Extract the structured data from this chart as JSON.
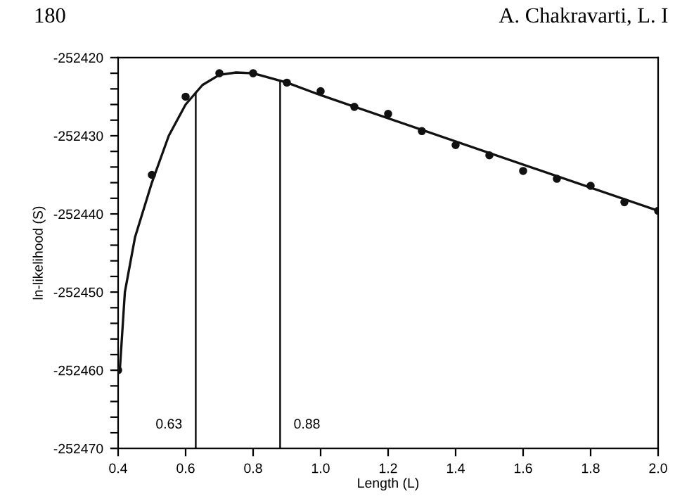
{
  "chart_data": {
    "type": "scatter",
    "xlabel": "Length (L)",
    "ylabel": "ln-likelihood (S)",
    "annotations": [
      "180",
      "A. Chakravarti, L. I"
    ],
    "series": [
      {
        "color": "#111111",
        "marker": "circle",
        "x": [
          0.4,
          0.5,
          0.6,
          0.7,
          0.8,
          0.9,
          1.0,
          1.1,
          1.2,
          1.3,
          1.4,
          1.5,
          1.6,
          1.7,
          1.8,
          1.9,
          2.0
        ],
        "values": [
          -252460,
          -252435,
          -252425,
          -252422,
          -252422,
          -252423.2,
          -252424.3,
          -252426.3,
          -252427.2,
          -252429.4,
          -252431.2,
          -252432.5,
          -252434.5,
          -252435.5,
          -252436.4,
          -252438.5,
          -252439.6
        ]
      },
      {
        "type": "line",
        "color": "#111111",
        "marker": "none",
        "line_style": "solid",
        "x": [
          0.405,
          0.42,
          0.45,
          0.5,
          0.55,
          0.6,
          0.65,
          0.7,
          0.75,
          0.8,
          0.9,
          1.0,
          2.0
        ],
        "values": [
          -252460,
          -252450,
          -252443,
          -252436,
          -252430,
          -252426,
          -252423.5,
          -252422.2,
          -252421.9,
          -252422,
          -252423.2,
          -252424.8,
          -252439.6
        ]
      }
    ],
    "ref_lines": [
      {
        "axis": "x",
        "value": 0.63,
        "label": "0.63",
        "color": "#111111"
      },
      {
        "axis": "x",
        "value": 0.88,
        "label": "0.88",
        "color": "#111111"
      }
    ],
    "xlim": [
      0.4,
      2.0
    ],
    "xticks": [
      {
        "value": 0.4,
        "label": "0.4"
      },
      {
        "value": 0.6,
        "label": "0.6"
      },
      {
        "value": 0.8,
        "label": "0.8"
      },
      {
        "value": 1.0,
        "label": "1.0"
      },
      {
        "value": 1.2,
        "label": "1.2"
      },
      {
        "value": 1.4,
        "label": "1.4"
      },
      {
        "value": 1.6,
        "label": "1.6"
      },
      {
        "value": 1.8,
        "label": "1.8"
      },
      {
        "value": 2.0,
        "label": "2.0"
      }
    ],
    "ylim": [
      -252470,
      -252420
    ],
    "yticks": [
      -252470,
      {
        "value": -252468,
        "label": null
      },
      {
        "value": -252466,
        "label": null
      },
      {
        "value": -252464,
        "label": null
      },
      {
        "value": -252462,
        "label": null
      },
      -252460,
      {
        "value": -252458,
        "label": null
      },
      {
        "value": -252456,
        "label": null
      },
      {
        "value": -252454,
        "label": null
      },
      {
        "value": -252452,
        "label": null
      },
      -252450,
      {
        "value": -252448,
        "label": null
      },
      {
        "value": -252446,
        "label": null
      },
      {
        "value": -252444,
        "label": null
      },
      {
        "value": -252442,
        "label": null
      },
      -252440,
      {
        "value": -252438,
        "label": null
      },
      {
        "value": -252436,
        "label": null
      },
      {
        "value": -252434,
        "label": null
      },
      {
        "value": -252432,
        "label": null
      },
      -252430,
      {
        "value": -252428,
        "label": null
      },
      {
        "value": -252426,
        "label": null
      },
      {
        "value": -252424,
        "label": null
      },
      {
        "value": -252422,
        "label": null
      },
      -252420
    ],
    "grid": false,
    "legend": false
  }
}
